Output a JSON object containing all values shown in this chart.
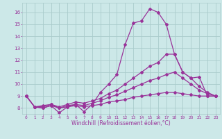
{
  "xlabel": "Windchill (Refroidissement éolien,°C)",
  "bg_color": "#cce8e8",
  "grid_color": "#aacccc",
  "line_color": "#993399",
  "xlim": [
    -0.5,
    23.5
  ],
  "ylim": [
    7.5,
    16.8
  ],
  "yticks": [
    8,
    9,
    10,
    11,
    12,
    13,
    14,
    15,
    16
  ],
  "xticks": [
    0,
    1,
    2,
    3,
    4,
    5,
    6,
    7,
    8,
    9,
    10,
    11,
    12,
    13,
    14,
    15,
    16,
    17,
    18,
    19,
    20,
    21,
    22,
    23
  ],
  "line1_x": [
    0,
    1,
    2,
    3,
    4,
    5,
    6,
    7,
    8,
    9,
    10,
    11,
    12,
    13,
    14,
    15,
    16,
    17,
    18,
    19,
    20,
    21,
    22,
    23
  ],
  "line1_y": [
    9.0,
    8.1,
    8.0,
    8.2,
    7.6,
    8.1,
    8.3,
    7.7,
    8.3,
    9.3,
    10.0,
    10.8,
    13.3,
    15.1,
    15.3,
    16.3,
    16.0,
    15.0,
    12.5,
    11.0,
    10.5,
    10.6,
    9.0,
    9.0
  ],
  "line2_x": [
    0,
    1,
    2,
    3,
    4,
    5,
    6,
    7,
    8,
    9,
    10,
    11,
    12,
    13,
    14,
    15,
    16,
    17,
    18,
    19,
    20,
    21,
    22,
    23
  ],
  "line2_y": [
    9.0,
    8.1,
    8.2,
    8.3,
    8.1,
    8.3,
    8.5,
    8.4,
    8.6,
    8.8,
    9.2,
    9.5,
    10.0,
    10.5,
    11.0,
    11.5,
    11.8,
    12.5,
    12.5,
    11.0,
    10.5,
    9.8,
    9.3,
    9.0
  ],
  "line3_x": [
    0,
    1,
    2,
    3,
    4,
    5,
    6,
    7,
    8,
    9,
    10,
    11,
    12,
    13,
    14,
    15,
    16,
    17,
    18,
    19,
    20,
    21,
    22,
    23
  ],
  "line3_y": [
    9.0,
    8.1,
    8.1,
    8.3,
    8.0,
    8.2,
    8.3,
    8.2,
    8.4,
    8.6,
    8.9,
    9.1,
    9.4,
    9.7,
    10.0,
    10.3,
    10.5,
    10.8,
    11.0,
    10.5,
    10.0,
    9.5,
    9.2,
    9.0
  ],
  "line4_x": [
    0,
    1,
    2,
    3,
    4,
    5,
    6,
    7,
    8,
    9,
    10,
    11,
    12,
    13,
    14,
    15,
    16,
    17,
    18,
    19,
    20,
    21,
    22,
    23
  ],
  "line4_y": [
    9.0,
    8.1,
    8.0,
    8.2,
    8.0,
    8.1,
    8.2,
    8.1,
    8.2,
    8.3,
    8.5,
    8.6,
    8.7,
    8.9,
    9.0,
    9.1,
    9.2,
    9.3,
    9.3,
    9.2,
    9.1,
    9.0,
    9.0,
    9.0
  ],
  "marker": "D",
  "markersize": 2.0,
  "linewidth": 0.9,
  "tick_fontsize": 5.0,
  "xlabel_fontsize": 5.5
}
